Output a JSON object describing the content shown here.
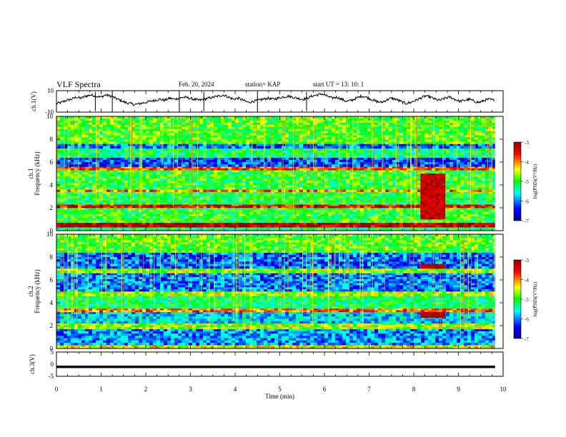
{
  "header": {
    "title": "VLF Spectra",
    "date": "Feb. 20, 2024",
    "station": "station= KAP",
    "start": "start  UT =   13: 10: 1"
  },
  "chart_data": [
    {
      "type": "line",
      "panel": "ch1-waveform",
      "ylabel": "ch.1(V)",
      "ylim": [
        -10,
        10
      ],
      "yticks": [
        "10",
        "-10"
      ],
      "xlim": [
        0,
        10
      ],
      "series": [
        {
          "values": [
            -2,
            -1,
            1,
            2,
            4,
            3,
            5,
            6,
            5,
            4,
            6,
            5,
            3,
            1,
            -1,
            -2,
            -3,
            -2,
            -1,
            0,
            1,
            2,
            1,
            3,
            2,
            3,
            4,
            3,
            2,
            1,
            2,
            3,
            4,
            5,
            6,
            4,
            2,
            3,
            1,
            -1,
            0,
            1,
            2,
            3,
            2,
            3,
            4,
            5,
            4,
            3,
            2,
            3,
            5,
            6,
            7,
            5,
            3,
            4,
            2,
            0,
            1,
            3,
            5,
            4,
            2,
            0,
            -1,
            1,
            3,
            2,
            0,
            -2,
            -1,
            1,
            3,
            5,
            4,
            2,
            1,
            3,
            4,
            2,
            0,
            1,
            2,
            0,
            -1,
            1,
            2,
            1
          ]
        }
      ]
    },
    {
      "type": "heatmap",
      "panel": "ch1-spectrogram",
      "ylabel": "ch.1 Frequency (kHz)",
      "ylim": [
        0,
        10
      ],
      "yticks": [
        "0",
        "2",
        "4",
        "6",
        "8",
        "10"
      ],
      "xlim": [
        0,
        10
      ],
      "colorbar": {
        "label": "log(PSD)(V²/Hz)",
        "range": [
          -7,
          -3
        ],
        "ticks": [
          "-3",
          "-4",
          "-5",
          "-6",
          "-7"
        ]
      },
      "bands": [
        {
          "fmin": 0.0,
          "fmax": 0.3,
          "level": -5.2
        },
        {
          "fmin": 0.3,
          "fmax": 0.7,
          "level": -3.2
        },
        {
          "fmin": 0.7,
          "fmax": 2.0,
          "level": -5.0
        },
        {
          "fmin": 2.0,
          "fmax": 2.3,
          "level": -3.5
        },
        {
          "fmin": 2.3,
          "fmax": 3.4,
          "level": -5.1
        },
        {
          "fmin": 3.4,
          "fmax": 3.6,
          "level": -4.0
        },
        {
          "fmin": 3.6,
          "fmax": 5.3,
          "level": -5.0
        },
        {
          "fmin": 5.3,
          "fmax": 5.6,
          "level": -3.8
        },
        {
          "fmin": 5.6,
          "fmax": 6.4,
          "level": -6.2
        },
        {
          "fmin": 6.4,
          "fmax": 7.2,
          "level": -5.2
        },
        {
          "fmin": 7.2,
          "fmax": 7.6,
          "level": -6.1
        },
        {
          "fmin": 7.6,
          "fmax": 10.0,
          "level": -4.9
        }
      ],
      "burst": {
        "tmin": 8.15,
        "tmax": 8.7,
        "fmin": 1.0,
        "fmax": 5.0,
        "level": -3.3
      }
    },
    {
      "type": "heatmap",
      "panel": "ch2-spectrogram",
      "ylabel": "ch.2 Frequency (kHz)",
      "ylim": [
        0,
        10
      ],
      "yticks": [
        "0",
        "2",
        "4",
        "6",
        "8",
        "10"
      ],
      "xlim": [
        0,
        10
      ],
      "colorbar": {
        "label": "log(PSD)(V²/Hz)",
        "range": [
          -7,
          -3
        ],
        "ticks": [
          "-3",
          "-4",
          "-5",
          "-6",
          "-7"
        ]
      },
      "bands": [
        {
          "fmin": 0.0,
          "fmax": 0.3,
          "level": -4.4
        },
        {
          "fmin": 0.3,
          "fmax": 1.7,
          "level": -5.9
        },
        {
          "fmin": 1.7,
          "fmax": 2.2,
          "level": -4.6
        },
        {
          "fmin": 2.2,
          "fmax": 3.2,
          "level": -5.7
        },
        {
          "fmin": 3.2,
          "fmax": 3.5,
          "level": -3.9
        },
        {
          "fmin": 3.5,
          "fmax": 4.6,
          "level": -5.2
        },
        {
          "fmin": 4.6,
          "fmax": 5.0,
          "level": -4.6
        },
        {
          "fmin": 5.0,
          "fmax": 6.6,
          "level": -6.0
        },
        {
          "fmin": 6.6,
          "fmax": 7.0,
          "level": -4.7
        },
        {
          "fmin": 7.0,
          "fmax": 8.4,
          "level": -6.1
        },
        {
          "fmin": 8.4,
          "fmax": 10.0,
          "level": -4.9
        }
      ],
      "burst": {
        "tmin": 8.15,
        "tmax": 8.7,
        "fmin": 2.7,
        "fmax": 3.2,
        "level": -3.2
      },
      "burst2": {
        "tmin": 8.15,
        "tmax": 8.7,
        "fmin": 7.0,
        "fmax": 7.4,
        "level": -3.2
      }
    },
    {
      "type": "line",
      "panel": "ch3-waveform",
      "ylabel": "ch.3(V)",
      "ylim": [
        -5,
        5
      ],
      "yticks": [
        "5",
        "0",
        "-5"
      ],
      "xlabel": "Time (min)",
      "xlim": [
        0,
        10
      ],
      "xticks": [
        "0",
        "1",
        "2",
        "3",
        "4",
        "5",
        "6",
        "7",
        "8",
        "9",
        "10"
      ],
      "series": [
        {
          "values": [
            -1.2,
            -1.2
          ]
        }
      ]
    }
  ]
}
